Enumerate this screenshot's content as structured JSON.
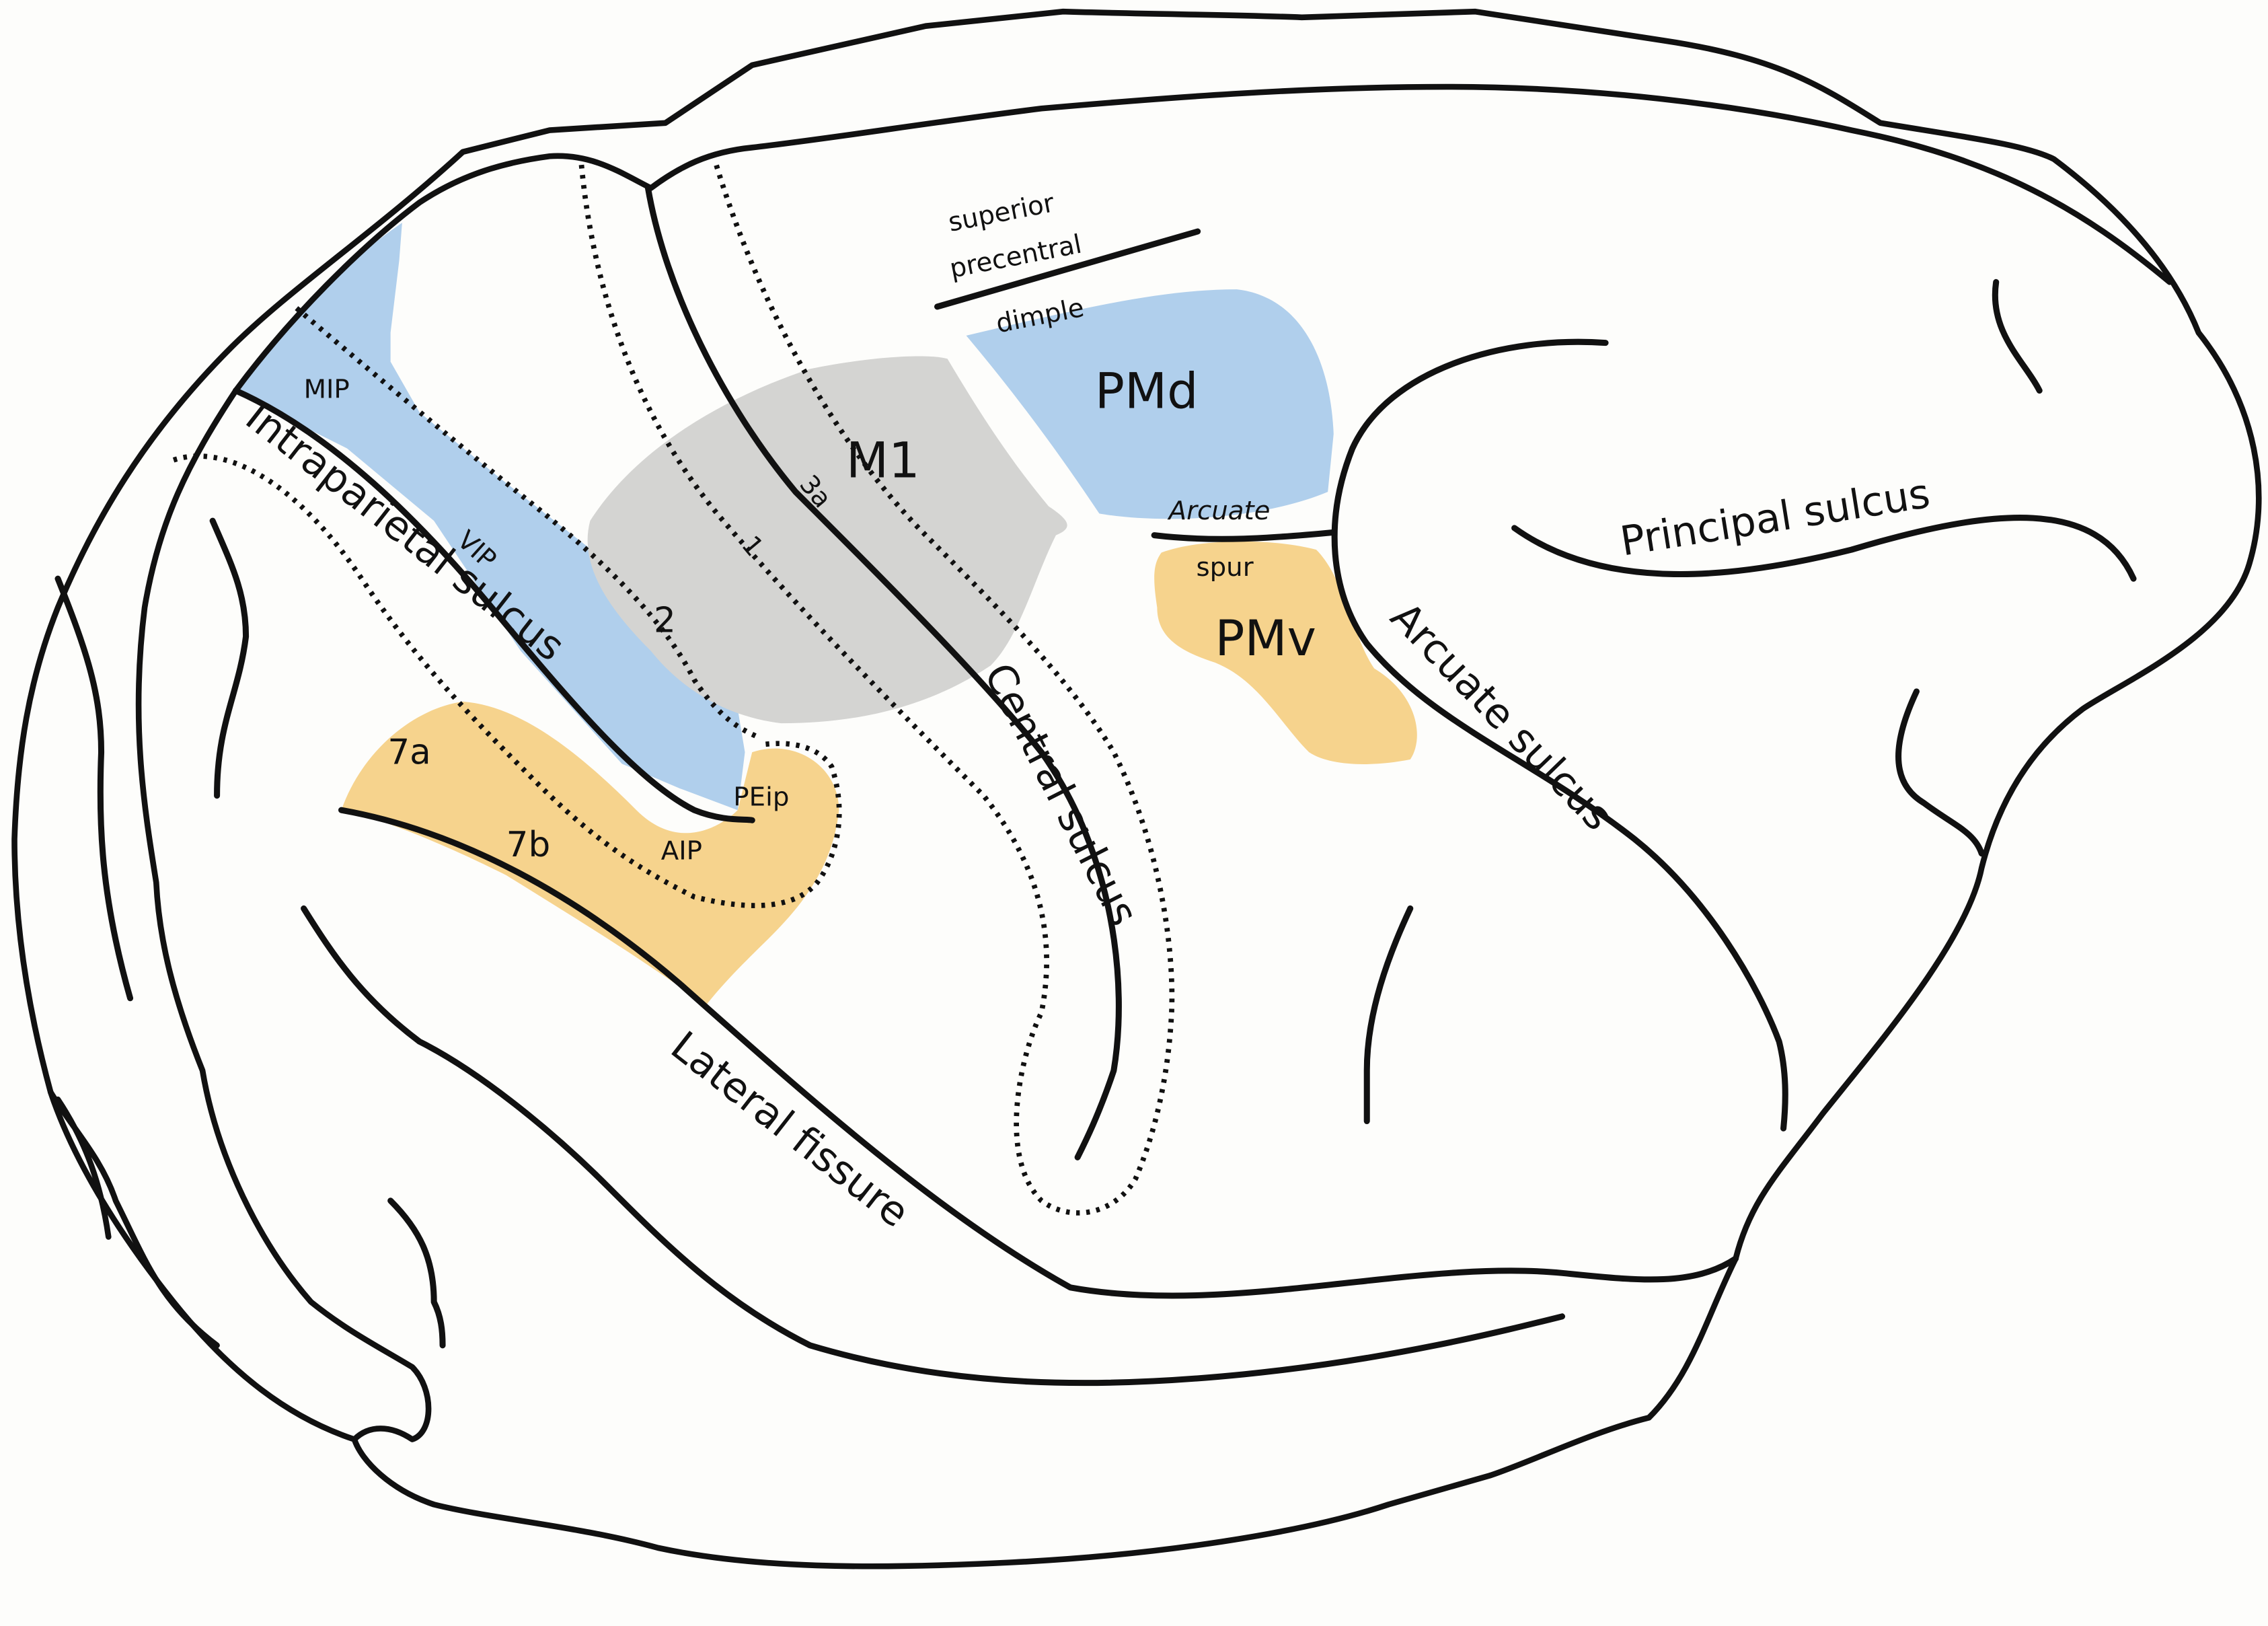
{
  "colors": {
    "background": "#fdfdfb",
    "outline": "#111111",
    "blue_region": "#b0cfec",
    "orange_region": "#f6d38d",
    "gray_region": "#d4d4d2"
  },
  "labels": {
    "superior_precentral_line1": "superior",
    "superior_precentral_line2": "precentral",
    "superior_precentral_line3": "dimple",
    "pmd": "PMd",
    "m1": "M1",
    "mip": "MIP",
    "vip": "VIP",
    "intraparietal_sulcus": "Intraparietal sulcus",
    "area_2": "2",
    "area_1": "1",
    "area_3a": "3a",
    "arcuate_spur_line1": "Arcuate",
    "arcuate_spur_line2": "spur",
    "pmv": "PMv",
    "principal_sulcus": "Principal sulcus",
    "arcuate_sulcus": "Arcuate sulcus",
    "central_sulcus": "Central sulcus",
    "area_7a": "7a",
    "area_7b": "7b",
    "peip": "PEip",
    "aip": "AIP",
    "lateral_fissure": "Lateral fissure"
  }
}
